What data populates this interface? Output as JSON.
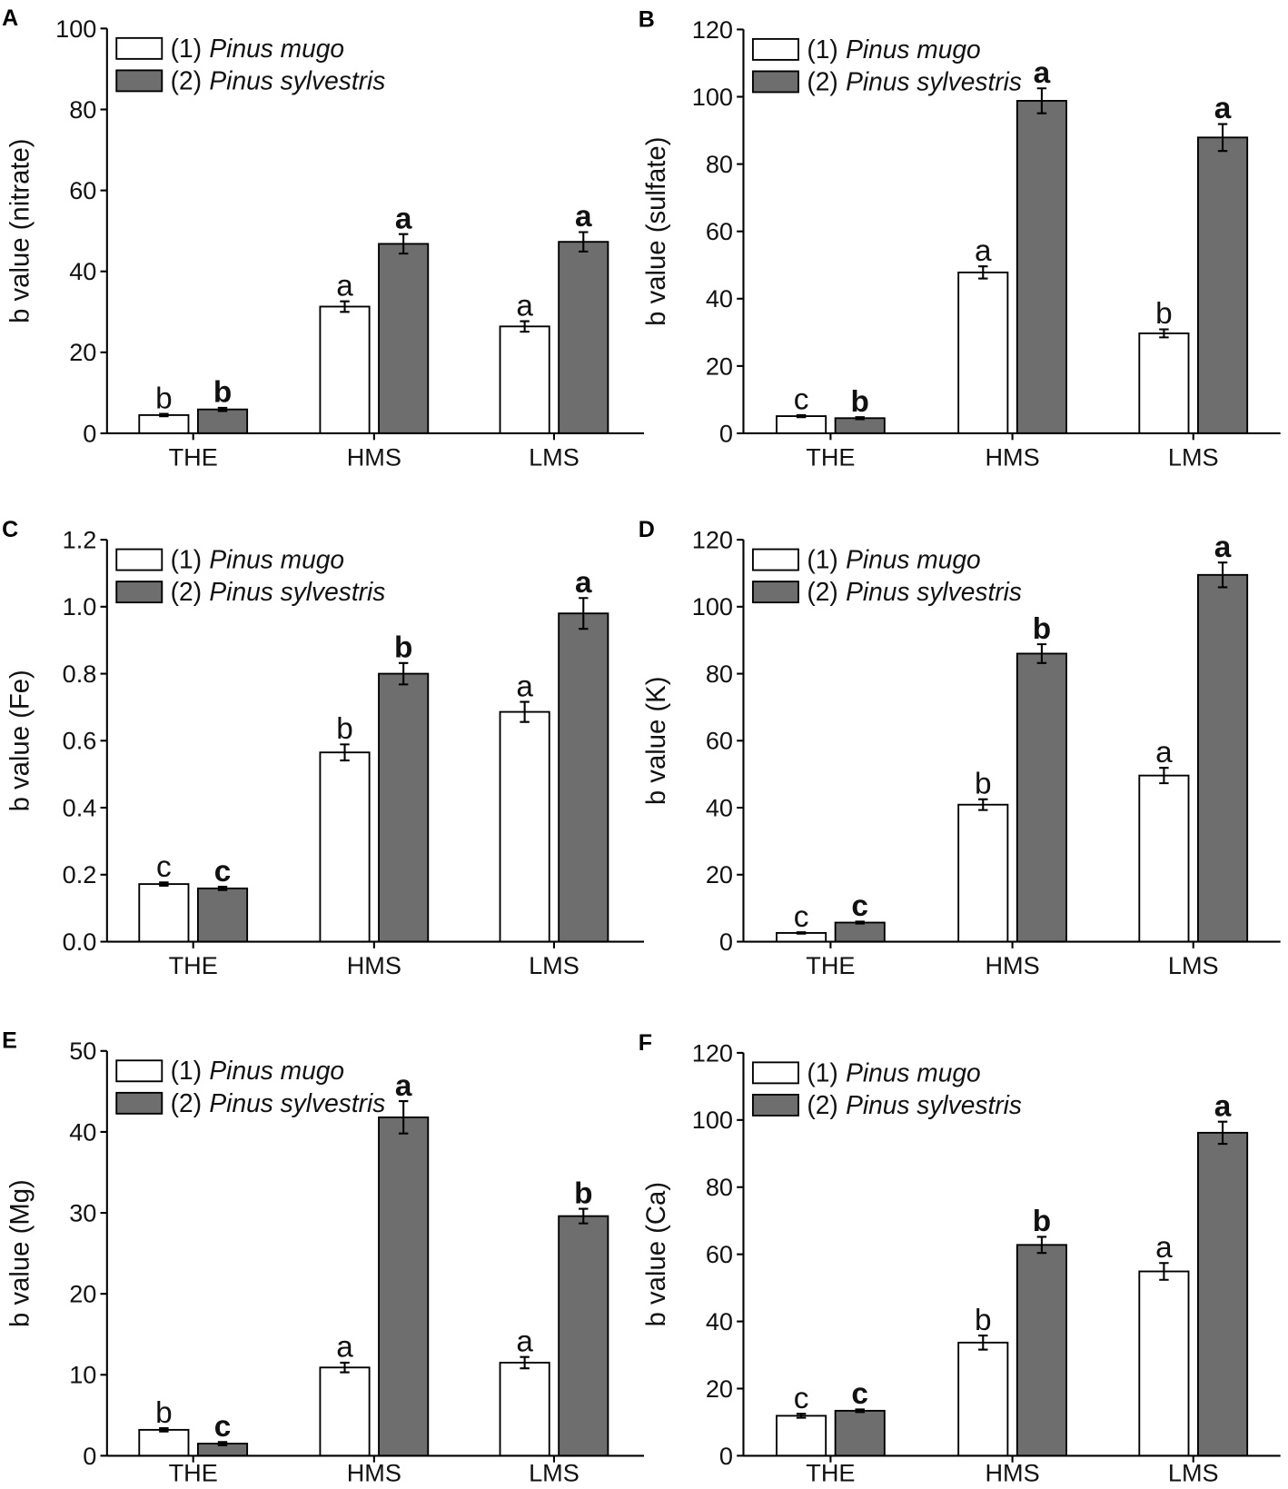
{
  "chart_data": [
    {
      "panel": "A",
      "type": "bar",
      "ylabel": "b value (nitrate)",
      "categories": [
        "THE",
        "HMS",
        "LMS"
      ],
      "ylim": [
        0,
        100
      ],
      "yticks": [
        0,
        20,
        40,
        60,
        80,
        100
      ],
      "ytick_labels": [
        "0",
        "20",
        "40",
        "60",
        "80",
        "100"
      ],
      "legend": "top-left",
      "series": [
        {
          "label_prefix": "(1)",
          "name": "Pinus mugo",
          "fill": "#ffffff",
          "values": [
            4.5,
            31.3,
            26.4
          ],
          "errors": [
            0.3,
            1.3,
            1.3
          ],
          "letters": [
            "b",
            "a",
            "a"
          ],
          "letters_bold": false
        },
        {
          "label_prefix": "(2)",
          "name": "Pinus sylvestris",
          "fill": "#6e6e6e",
          "values": [
            5.9,
            46.8,
            47.3
          ],
          "errors": [
            0.4,
            2.4,
            2.4
          ],
          "letters": [
            "b",
            "a",
            "a"
          ],
          "letters_bold": true
        }
      ]
    },
    {
      "panel": "B",
      "type": "bar",
      "ylabel": "b value (sulfate)",
      "categories": [
        "THE",
        "HMS",
        "LMS"
      ],
      "ylim": [
        0,
        120
      ],
      "yticks": [
        0,
        20,
        40,
        60,
        80,
        100,
        120
      ],
      "ytick_labels": [
        "0",
        "20",
        "40",
        "60",
        "80",
        "100",
        "120"
      ],
      "legend": "top-left",
      "series": [
        {
          "label_prefix": "(1)",
          "name": "Pinus mugo",
          "fill": "#ffffff",
          "values": [
            5.1,
            47.8,
            29.7
          ],
          "errors": [
            0.3,
            1.8,
            1.2
          ],
          "letters": [
            "c",
            "a",
            "b"
          ],
          "letters_bold": false
        },
        {
          "label_prefix": "(2)",
          "name": "Pinus sylvestris",
          "fill": "#6e6e6e",
          "values": [
            4.5,
            98.8,
            87.9
          ],
          "errors": [
            0.3,
            3.7,
            4.0
          ],
          "letters": [
            "b",
            "a",
            "a"
          ],
          "letters_bold": true
        }
      ]
    },
    {
      "panel": "C",
      "type": "bar",
      "ylabel": "b value (Fe)",
      "categories": [
        "THE",
        "HMS",
        "LMS"
      ],
      "ylim": [
        0,
        1.2
      ],
      "yticks": [
        0,
        0.2,
        0.4,
        0.6,
        0.8,
        1.0,
        1.2
      ],
      "ytick_labels": [
        "0.0",
        "0.2",
        "0.4",
        "0.6",
        "0.8",
        "1.0",
        "1.2"
      ],
      "legend": "top-left",
      "series": [
        {
          "label_prefix": "(1)",
          "name": "Pinus mugo",
          "fill": "#ffffff",
          "values": [
            0.172,
            0.565,
            0.686
          ],
          "errors": [
            0.005,
            0.024,
            0.03
          ],
          "letters": [
            "c",
            "b",
            "a"
          ],
          "letters_bold": false
        },
        {
          "label_prefix": "(2)",
          "name": "Pinus sylvestris",
          "fill": "#6e6e6e",
          "values": [
            0.159,
            0.8,
            0.98
          ],
          "errors": [
            0.005,
            0.032,
            0.046
          ],
          "letters": [
            "c",
            "b",
            "a"
          ],
          "letters_bold": true
        }
      ]
    },
    {
      "panel": "D",
      "type": "bar",
      "ylabel": "b value (K)",
      "categories": [
        "THE",
        "HMS",
        "LMS"
      ],
      "ylim": [
        0,
        120
      ],
      "yticks": [
        0,
        20,
        40,
        60,
        80,
        100,
        120
      ],
      "ytick_labels": [
        "0",
        "20",
        "40",
        "60",
        "80",
        "100",
        "120"
      ],
      "legend": "top-left",
      "series": [
        {
          "label_prefix": "(1)",
          "name": "Pinus mugo",
          "fill": "#ffffff",
          "values": [
            2.6,
            40.9,
            49.6
          ],
          "errors": [
            0.2,
            1.6,
            2.3
          ],
          "letters": [
            "c",
            "b",
            "a"
          ],
          "letters_bold": false
        },
        {
          "label_prefix": "(2)",
          "name": "Pinus sylvestris",
          "fill": "#6e6e6e",
          "values": [
            5.7,
            86.0,
            109.5
          ],
          "errors": [
            0.3,
            2.8,
            3.7
          ],
          "letters": [
            "c",
            "b",
            "a"
          ],
          "letters_bold": true
        }
      ]
    },
    {
      "panel": "E",
      "type": "bar",
      "ylabel": "b value (Mg)",
      "categories": [
        "THE",
        "HMS",
        "LMS"
      ],
      "ylim": [
        0,
        50
      ],
      "yticks": [
        0,
        10,
        20,
        30,
        40,
        50
      ],
      "ytick_labels": [
        "0",
        "10",
        "20",
        "30",
        "40",
        "50"
      ],
      "legend": "top-left",
      "series": [
        {
          "label_prefix": "(1)",
          "name": "Pinus mugo",
          "fill": "#ffffff",
          "values": [
            3.2,
            10.9,
            11.5
          ],
          "errors": [
            0.2,
            0.6,
            0.7
          ],
          "letters": [
            "b",
            "a",
            "a"
          ],
          "letters_bold": false
        },
        {
          "label_prefix": "(2)",
          "name": "Pinus sylvestris",
          "fill": "#6e6e6e",
          "values": [
            1.5,
            41.8,
            29.6
          ],
          "errors": [
            0.2,
            2.0,
            0.9
          ],
          "letters": [
            "c",
            "a",
            "b"
          ],
          "letters_bold": true
        }
      ]
    },
    {
      "panel": "F",
      "type": "bar",
      "ylabel": "b value (Ca)",
      "categories": [
        "THE",
        "HMS",
        "LMS"
      ],
      "ylim": [
        0,
        120
      ],
      "yticks": [
        0,
        20,
        40,
        60,
        80,
        100,
        120
      ],
      "ytick_labels": [
        "0",
        "20",
        "40",
        "60",
        "80",
        "100",
        "120"
      ],
      "legend": "top-left",
      "series": [
        {
          "label_prefix": "(1)",
          "name": "Pinus mugo",
          "fill": "#ffffff",
          "values": [
            11.9,
            33.7,
            54.9
          ],
          "errors": [
            0.6,
            2.1,
            2.5
          ],
          "letters": [
            "c",
            "b",
            "a"
          ],
          "letters_bold": false
        },
        {
          "label_prefix": "(2)",
          "name": "Pinus sylvestris",
          "fill": "#6e6e6e",
          "values": [
            13.4,
            62.8,
            96.2
          ],
          "errors": [
            0.4,
            2.4,
            3.3
          ],
          "letters": [
            "c",
            "b",
            "a"
          ],
          "letters_bold": true
        }
      ]
    }
  ]
}
